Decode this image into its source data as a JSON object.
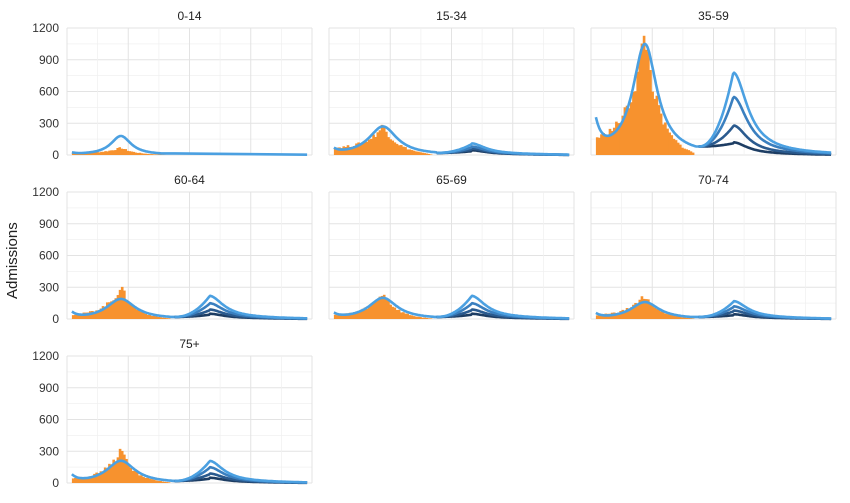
{
  "chart_data": {
    "type": "area",
    "ylabel": "Admissions",
    "ylim": [
      0,
      1200
    ],
    "yticks": [
      0,
      300,
      600,
      900,
      1200
    ],
    "grid": true,
    "colors": {
      "observed": "#f7922e",
      "projection_light": "#4ba0e1",
      "projection_mid": "#3a7fbf",
      "projection_dark": "#2a5a8e",
      "projection_darkest": "#1d3d63",
      "grid": "#e6e6e6"
    },
    "panels": [
      {
        "title": "0-14",
        "observed": {
          "start": 0.02,
          "end": 0.4,
          "peak_x": 0.22,
          "peak": 70,
          "base": 15
        },
        "fit": {
          "peak_x": 0.22,
          "peak": 180,
          "width": 0.05,
          "base": 15,
          "start_y": 15
        },
        "wave2": []
      },
      {
        "title": "15-34",
        "observed": {
          "start": 0.02,
          "end": 0.42,
          "peak_x": 0.22,
          "peak": 280,
          "base": 60
        },
        "fit": {
          "peak_x": 0.22,
          "peak": 270,
          "width": 0.07,
          "base": 20,
          "start_y": 40
        },
        "wave2": [
          {
            "peak": 100,
            "shade": "projection_light"
          },
          {
            "peak": 70,
            "shade": "projection_mid"
          },
          {
            "peak": 50,
            "shade": "projection_dark"
          },
          {
            "peak": 35,
            "shade": "projection_darkest"
          }
        ]
      },
      {
        "title": "35-59",
        "observed": {
          "start": 0.02,
          "end": 0.42,
          "peak_x": 0.22,
          "peak": 1170,
          "base": 120
        },
        "fit": {
          "peak_x": 0.22,
          "peak": 1050,
          "width": 0.06,
          "base": 80,
          "start_y": 270
        },
        "wave2": [
          {
            "peak": 770,
            "shade": "projection_light"
          },
          {
            "peak": 540,
            "shade": "projection_mid"
          },
          {
            "peak": 270,
            "shade": "projection_dark"
          },
          {
            "peak": 110,
            "shade": "projection_darkest"
          }
        ]
      },
      {
        "title": "60-64",
        "observed": {
          "start": 0.02,
          "end": 0.42,
          "peak_x": 0.22,
          "peak": 300,
          "base": 30
        },
        "fit": {
          "peak_x": 0.22,
          "peak": 190,
          "width": 0.07,
          "base": 20,
          "start_y": 50
        },
        "wave2": [
          {
            "peak": 210,
            "shade": "projection_light"
          },
          {
            "peak": 140,
            "shade": "projection_mid"
          },
          {
            "peak": 80,
            "shade": "projection_dark"
          },
          {
            "peak": 40,
            "shade": "projection_darkest"
          }
        ]
      },
      {
        "title": "65-69",
        "observed": {
          "start": 0.02,
          "end": 0.42,
          "peak_x": 0.22,
          "peak": 250,
          "base": 30
        },
        "fit": {
          "peak_x": 0.22,
          "peak": 200,
          "width": 0.07,
          "base": 20,
          "start_y": 40
        },
        "wave2": [
          {
            "peak": 210,
            "shade": "projection_light"
          },
          {
            "peak": 140,
            "shade": "projection_mid"
          },
          {
            "peak": 80,
            "shade": "projection_dark"
          },
          {
            "peak": 40,
            "shade": "projection_darkest"
          }
        ]
      },
      {
        "title": "70-74",
        "observed": {
          "start": 0.02,
          "end": 0.42,
          "peak_x": 0.22,
          "peak": 230,
          "base": 30
        },
        "fit": {
          "peak_x": 0.22,
          "peak": 160,
          "width": 0.07,
          "base": 20,
          "start_y": 40
        },
        "wave2": [
          {
            "peak": 160,
            "shade": "projection_light"
          },
          {
            "peak": 110,
            "shade": "projection_mid"
          },
          {
            "peak": 70,
            "shade": "projection_dark"
          },
          {
            "peak": 35,
            "shade": "projection_darkest"
          }
        ]
      },
      {
        "title": "75+",
        "observed": {
          "start": 0.02,
          "end": 0.42,
          "peak_x": 0.22,
          "peak": 310,
          "base": 30
        },
        "fit": {
          "peak_x": 0.22,
          "peak": 210,
          "width": 0.07,
          "base": 20,
          "start_y": 60
        },
        "wave2": [
          {
            "peak": 200,
            "shade": "projection_light"
          },
          {
            "peak": 140,
            "shade": "projection_mid"
          },
          {
            "peak": 80,
            "shade": "projection_dark"
          },
          {
            "peak": 40,
            "shade": "projection_darkest"
          }
        ]
      }
    ]
  }
}
